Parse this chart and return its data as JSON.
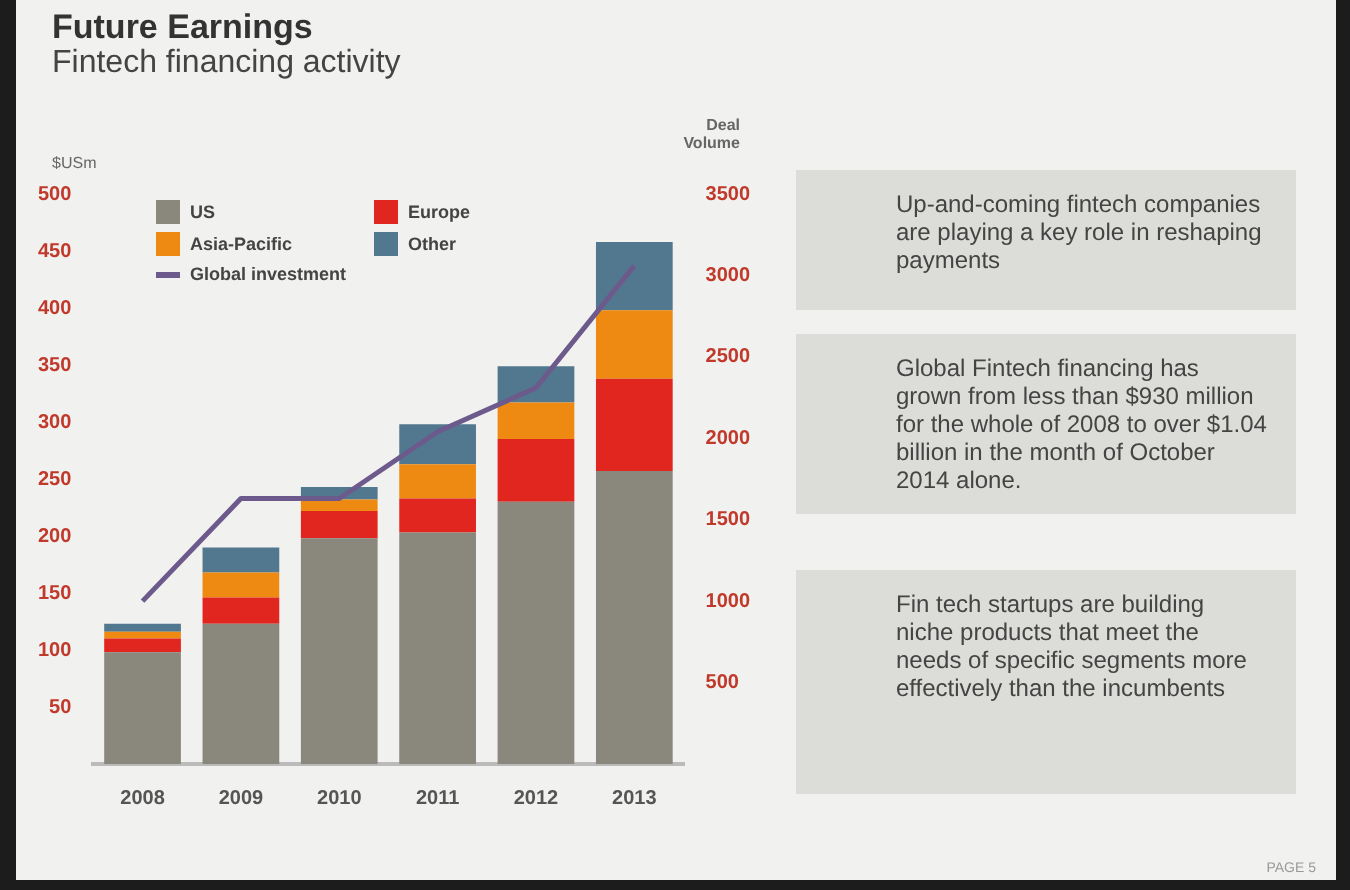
{
  "chart_data": {
    "type": "bar",
    "title": "Future Earnings",
    "subtitle": "Fintech financing activity",
    "ylabel": "$USm",
    "y2label": "Deal Volume",
    "categories": [
      "2008",
      "2009",
      "2010",
      "2011",
      "2012",
      "2013"
    ],
    "stacked": true,
    "series": [
      {
        "name": "US",
        "color": "#8a877c",
        "values": [
          98,
          123,
          198,
          203,
          230,
          257
        ]
      },
      {
        "name": "Europe",
        "color": "#e0261f",
        "values": [
          12,
          23,
          24,
          30,
          55,
          81
        ]
      },
      {
        "name": "Asia-Pacific",
        "color": "#ee8a12",
        "values": [
          6,
          22,
          10,
          30,
          32,
          60
        ]
      },
      {
        "name": "Other",
        "color": "#52788f",
        "values": [
          7,
          22,
          11,
          35,
          32,
          60
        ]
      },
      {
        "name": "Global investment",
        "type": "line",
        "axis": "y2",
        "color": "#6d5a8c",
        "marker": "none",
        "values": [
          1000,
          1630,
          1630,
          2040,
          2310,
          3060
        ]
      }
    ],
    "ylim": [
      0,
      500
    ],
    "yticks": [
      50,
      100,
      150,
      200,
      250,
      300,
      350,
      400,
      450,
      500
    ],
    "y2lim": [
      0,
      3500
    ],
    "y2ticks": [
      500,
      1000,
      1500,
      2000,
      2500,
      3000,
      3500
    ],
    "grid": false,
    "legend": "top left",
    "annotations": [
      "Up-and-coming fintech companies are playing a key role in reshaping payments",
      "Global Fintech financing has grown from less than $930 million for the whole of 2008 to over $1.04 billion in the month of October 2014 alone.",
      "Fin tech startups are building niche products that meet the needs of specific segments more effectively than the incumbents",
      "PAGE 5"
    ]
  }
}
